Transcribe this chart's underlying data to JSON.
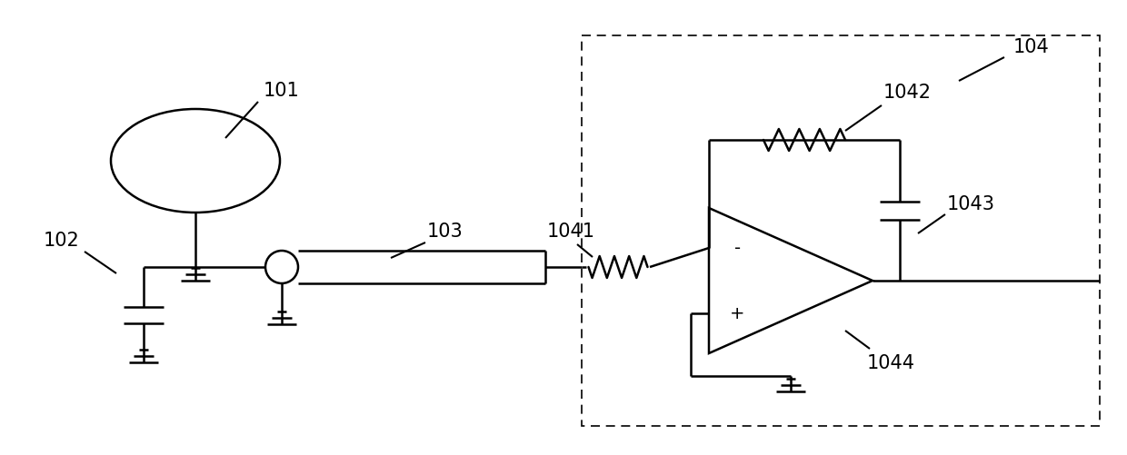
{
  "fig_width": 12.4,
  "fig_height": 5.02,
  "dpi": 100,
  "line_color": "#000000",
  "line_width": 1.8,
  "bg_color": "#ffffff"
}
